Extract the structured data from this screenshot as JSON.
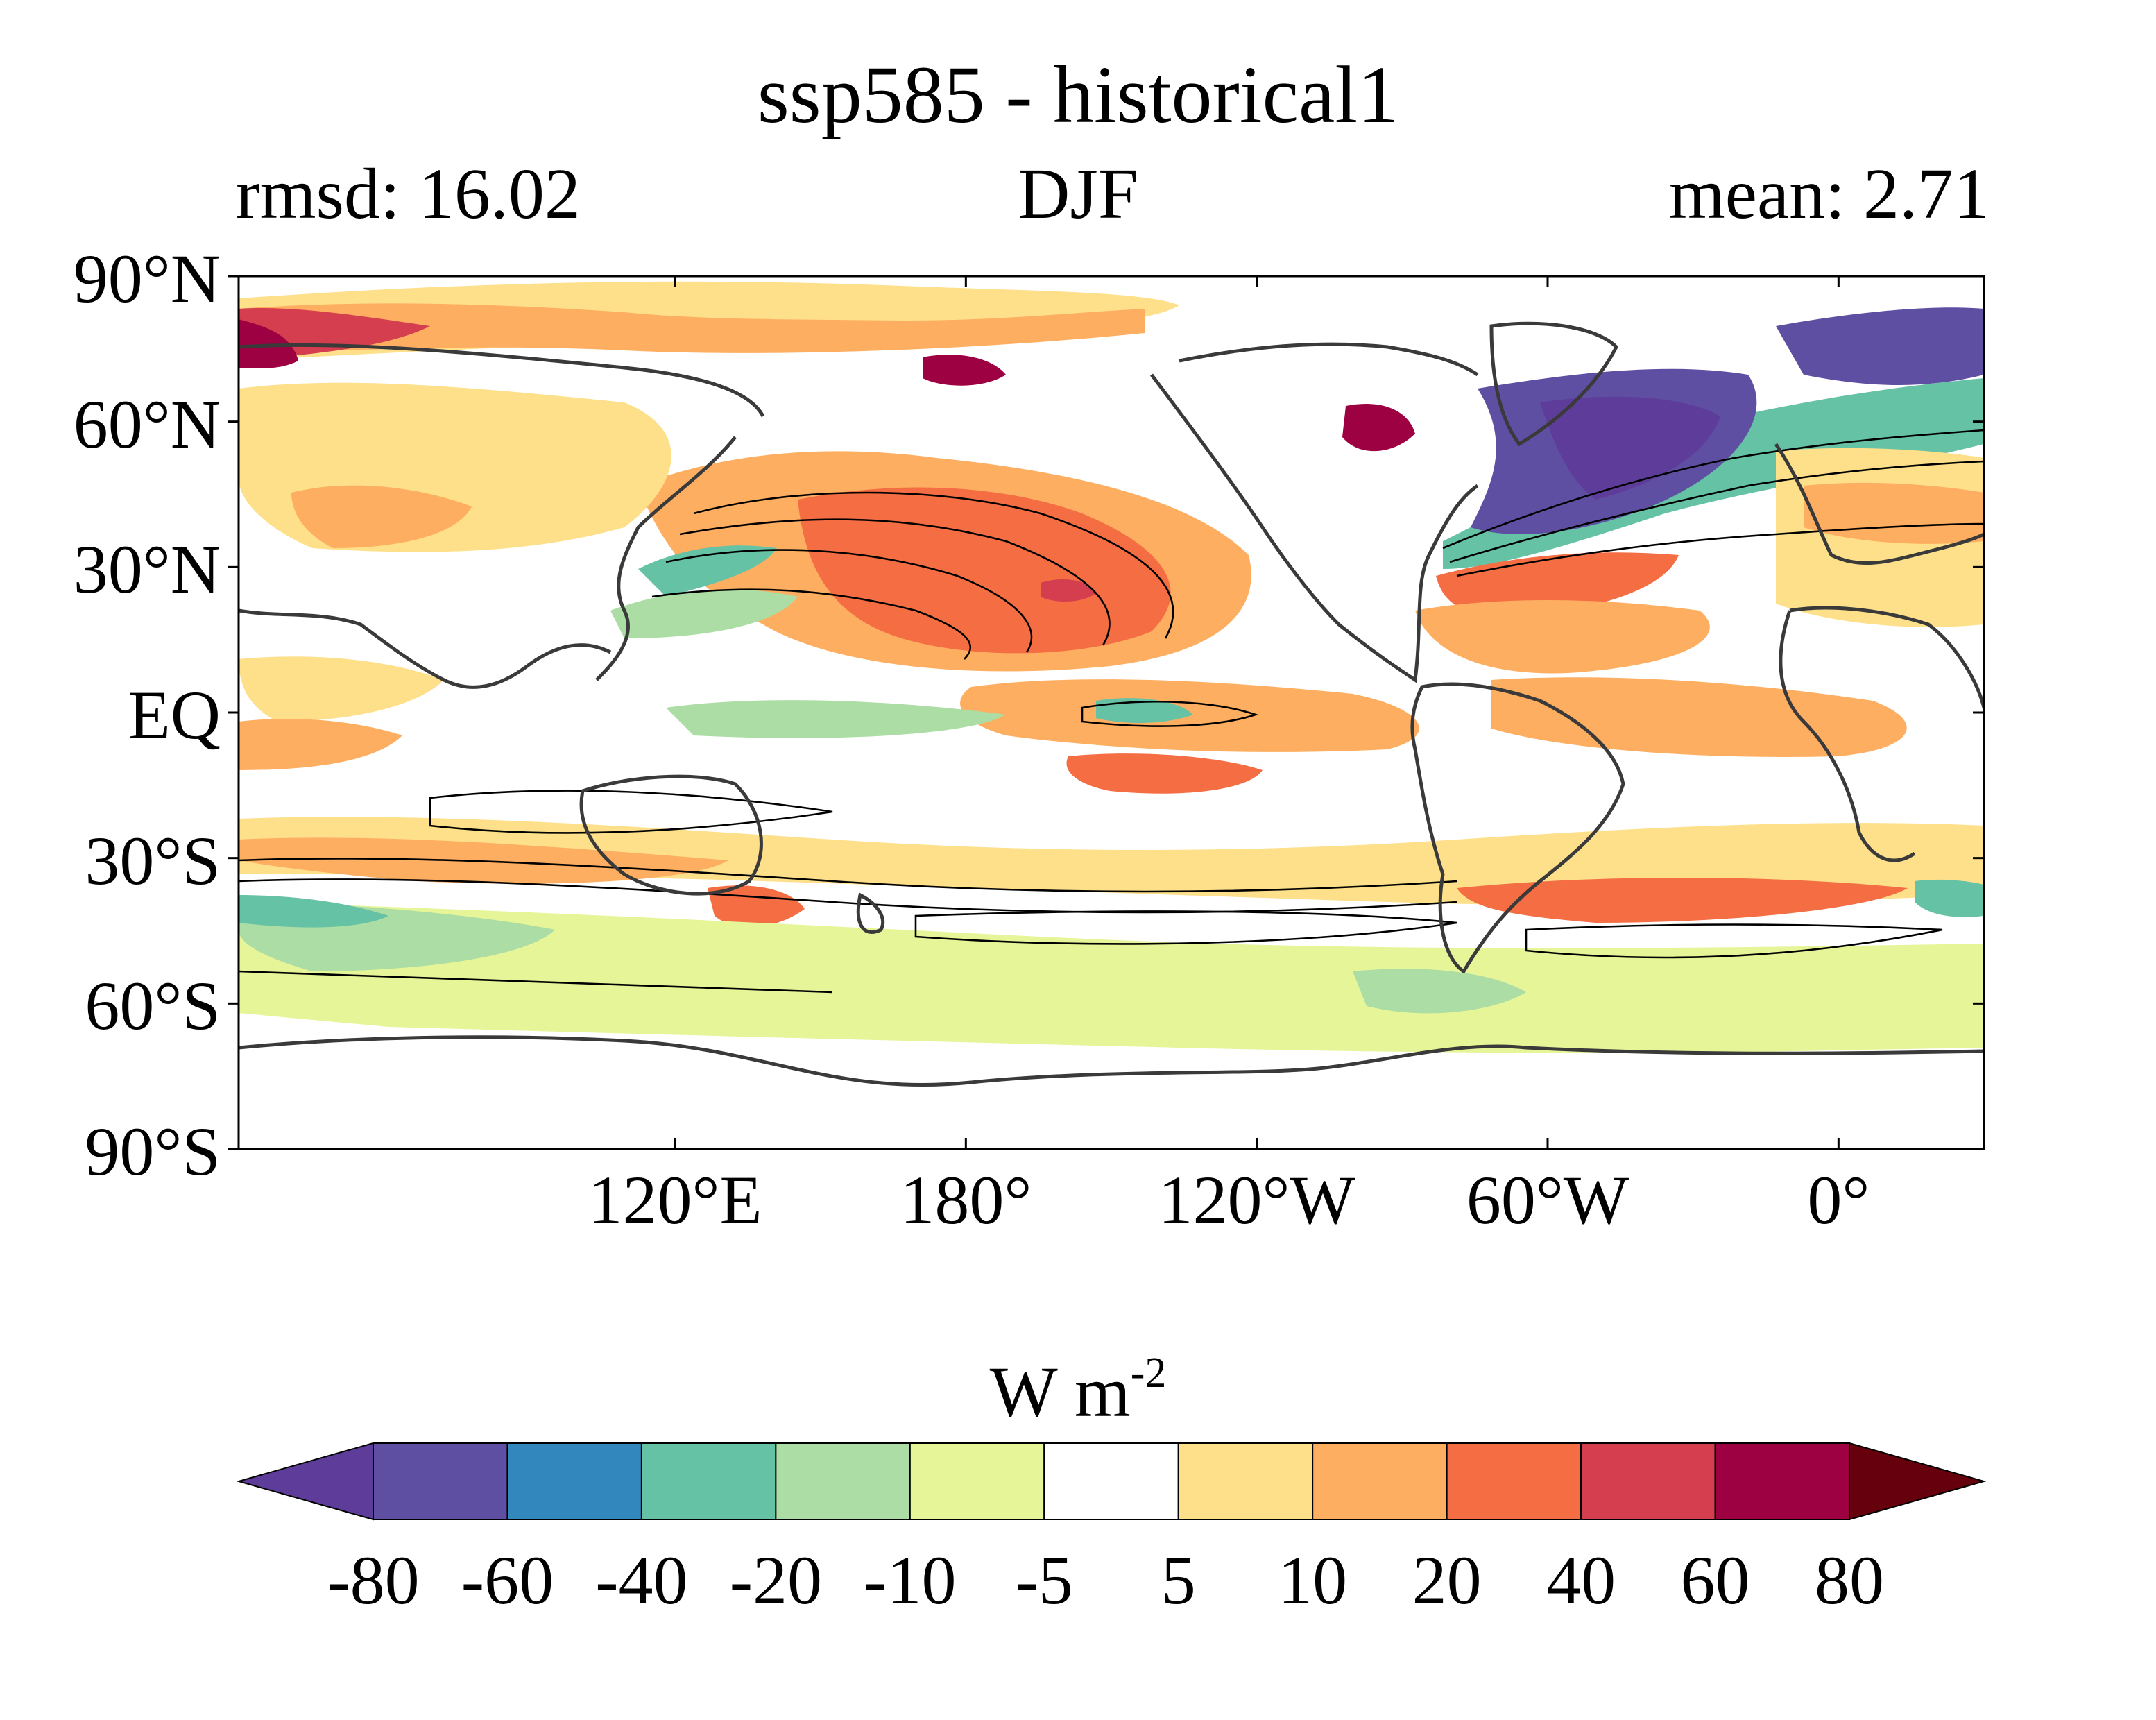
{
  "title": "ssp585 - historical1",
  "subtitle_left": "rmsd: 16.02",
  "subtitle_center": "DJF",
  "subtitle_right": "mean: 2.71",
  "map": {
    "projection": "equirectangular",
    "lon_range": [
      30,
      390
    ],
    "lat_range": [
      -90,
      90
    ],
    "lat_ticks": [
      {
        "value": 90,
        "label": "90°N"
      },
      {
        "value": 60,
        "label": "60°N"
      },
      {
        "value": 30,
        "label": "30°N"
      },
      {
        "value": 0,
        "label": "EQ"
      },
      {
        "value": -30,
        "label": "30°S"
      },
      {
        "value": -60,
        "label": "60°S"
      },
      {
        "value": -90,
        "label": "90°S"
      }
    ],
    "lon_ticks": [
      {
        "value": 120,
        "label": "120°E"
      },
      {
        "value": 180,
        "label": "180°"
      },
      {
        "value": 240,
        "label": "120°W"
      },
      {
        "value": 300,
        "label": "60°W"
      },
      {
        "value": 360,
        "label": "0°"
      }
    ],
    "fill_field": "filled contours of ssp585 - historical1 difference",
    "overlay": "black line contours and coastlines"
  },
  "colorbar": {
    "units_main": "W m",
    "units_exp": "-2",
    "levels": [
      "-80",
      "-60",
      "-40",
      "-20",
      "-10",
      "-5",
      "5",
      "10",
      "20",
      "40",
      "60",
      "80"
    ],
    "colors": [
      "#5e3c99",
      "#5e4fa2",
      "#3288bd",
      "#66c2a5",
      "#abdda4",
      "#e6f598",
      "#ffffff",
      "#fee08b",
      "#fdae61",
      "#f46d43",
      "#d53e4f",
      "#9e0142",
      "#67000d"
    ],
    "extend": "both"
  },
  "colors": {
    "deep_purple": "#5e3c99",
    "purple": "#5e4fa2",
    "blue": "#3288bd",
    "teal": "#66c2a5",
    "light_green": "#abdda4",
    "pale_green": "#e6f598",
    "white": "#ffffff",
    "pale_yellow": "#fee08b",
    "light_orange": "#fdae61",
    "orange": "#f46d43",
    "red": "#d53e4f",
    "crimson": "#9e0142",
    "dark_red": "#67000d"
  }
}
